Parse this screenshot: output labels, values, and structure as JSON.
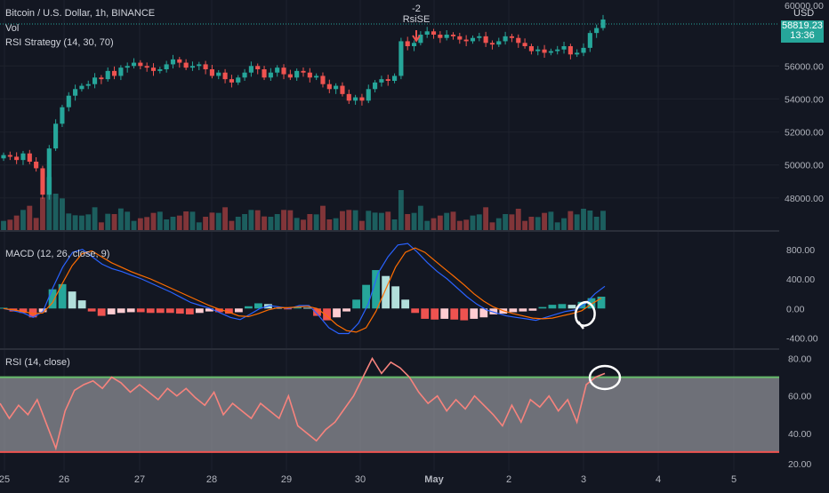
{
  "legend": {
    "main_title": "Bitcoin / U.S. Dollar, 1h, BINANCE",
    "vol": "Vol",
    "strategy": "RSI Strategy (14, 30, 70)",
    "macd": "MACD (12, 26, close, 9)",
    "rsi": "RSI (14, close)"
  },
  "signal": {
    "qty": "-2",
    "label": "RsiSE"
  },
  "price_scale": {
    "currency": "USD",
    "top_label": "60000.00",
    "current_price": "58819.23",
    "countdown": "13:36",
    "labels": [
      "56000.00",
      "54000.00",
      "52000.00",
      "50000.00",
      "48000.00"
    ]
  },
  "macd_scale": {
    "labels": [
      "800.00",
      "400.00",
      "0.00",
      "-400.00"
    ]
  },
  "rsi_scale": {
    "labels": [
      "80.00",
      "60.00",
      "40.00",
      "20.00"
    ]
  },
  "time_axis": {
    "labels": [
      "25",
      "26",
      "27",
      "28",
      "29",
      "30",
      "May",
      "2",
      "3",
      "4",
      "5"
    ]
  },
  "colors": {
    "background": "#131722",
    "up": "#26a69a",
    "down": "#ef5350",
    "macd_line": "#2962ff",
    "signal_line": "#ff6d00",
    "rsi_line": "#f7837d",
    "rsi_band": "#8e8f96",
    "rsi_upper": "#66bb6a",
    "rsi_lower": "#ef5350",
    "annotation": "#ffffff"
  },
  "chart_data": [
    {
      "type": "candlestick",
      "title": "Bitcoin / U.S. Dollar, 1h, BINANCE",
      "ylim": [
        46000,
        60000
      ],
      "x_labels": [
        "25",
        "26",
        "27",
        "28",
        "29",
        "30",
        "May",
        "2",
        "3",
        "4",
        "5"
      ],
      "close": [
        50600,
        50500,
        50300,
        50700,
        50200,
        49800,
        48200,
        51000,
        52500,
        53500,
        54200,
        54600,
        54800,
        54900,
        55300,
        55200,
        55700,
        55400,
        55900,
        56000,
        56200,
        56000,
        55900,
        55700,
        55800,
        56100,
        56400,
        56200,
        55900,
        56000,
        56100,
        55800,
        55400,
        55600,
        55200,
        55000,
        55300,
        55600,
        56000,
        55800,
        55300,
        55600,
        55900,
        55500,
        55300,
        55700,
        55600,
        55300,
        55400,
        54900,
        54600,
        54800,
        54300,
        53900,
        54100,
        53900,
        54600,
        55000,
        55200,
        55100,
        55400,
        57500,
        57200,
        57400,
        57900,
        58100,
        57900,
        57700,
        57900,
        57800,
        57600,
        57500,
        57700,
        57800,
        57400,
        57300,
        57500,
        57800,
        57700,
        57400,
        57200,
        56900,
        57000,
        56800,
        56900,
        57000,
        57200,
        56700,
        56800,
        57100,
        58000,
        58300,
        58819
      ],
      "volume_note": "volume bars shown under price"
    },
    {
      "type": "line",
      "title": "MACD (12, 26, close, 9)",
      "ylim": [
        -550,
        1050
      ],
      "series": [
        {
          "name": "MACD",
          "values": [
            0,
            -30,
            -60,
            -120,
            -40,
            280,
            560,
            760,
            800,
            700,
            600,
            540,
            500,
            450,
            400,
            340,
            280,
            220,
            150,
            80,
            40,
            0,
            -60,
            -120,
            -150,
            -80,
            0,
            40,
            20,
            0,
            40,
            40,
            -100,
            -260,
            -340,
            -340,
            -200,
            60,
            480,
            700,
            860,
            880,
            760,
            620,
            500,
            400,
            280,
            160,
            60,
            -20,
            -60,
            -100,
            -120,
            -140,
            -160,
            -120,
            -80,
            -40,
            -20,
            60,
            200,
            300
          ]
        },
        {
          "name": "Signal",
          "values": [
            0,
            -20,
            -40,
            -70,
            -60,
            80,
            340,
            580,
            740,
            780,
            700,
            620,
            560,
            500,
            450,
            400,
            340,
            280,
            220,
            160,
            100,
            40,
            -10,
            -50,
            -100,
            -110,
            -70,
            -20,
            10,
            10,
            20,
            30,
            0,
            -100,
            -220,
            -300,
            -320,
            -260,
            -40,
            260,
            560,
            760,
            820,
            760,
            650,
            540,
            430,
            320,
            200,
            100,
            20,
            -30,
            -70,
            -100,
            -130,
            -140,
            -130,
            -100,
            -70,
            -30,
            60,
            140
          ]
        }
      ],
      "histogram": [
        10,
        -40,
        -60,
        -120,
        -50,
        260,
        330,
        230,
        110,
        -40,
        -100,
        -80,
        -60,
        -50,
        -50,
        -60,
        -60,
        -60,
        -70,
        -80,
        -60,
        -40,
        -50,
        -70,
        -50,
        30,
        70,
        60,
        10,
        -10,
        20,
        10,
        -100,
        -160,
        -120,
        -40,
        120,
        320,
        520,
        440,
        300,
        120,
        -60,
        -140,
        -150,
        -140,
        -150,
        -160,
        -140,
        -120,
        -80,
        -70,
        -50,
        -40,
        -30,
        20,
        50,
        60,
        50,
        90,
        140,
        160
      ]
    },
    {
      "type": "line",
      "title": "RSI (14, close)",
      "ylim": [
        20,
        85
      ],
      "band": [
        30,
        70
      ],
      "series": [
        {
          "name": "RSI",
          "values": [
            56,
            48,
            55,
            50,
            58,
            45,
            32,
            52,
            63,
            66,
            68,
            64,
            70,
            67,
            62,
            66,
            62,
            58,
            64,
            60,
            64,
            59,
            55,
            62,
            50,
            56,
            52,
            48,
            56,
            52,
            48,
            60,
            44,
            40,
            36,
            42,
            46,
            53,
            60,
            70,
            80,
            72,
            78,
            75,
            70,
            62,
            56,
            60,
            52,
            58,
            53,
            60,
            55,
            50,
            44,
            55,
            46,
            58,
            54,
            60,
            52,
            58,
            46,
            66,
            70,
            72
          ]
        }
      ]
    }
  ]
}
